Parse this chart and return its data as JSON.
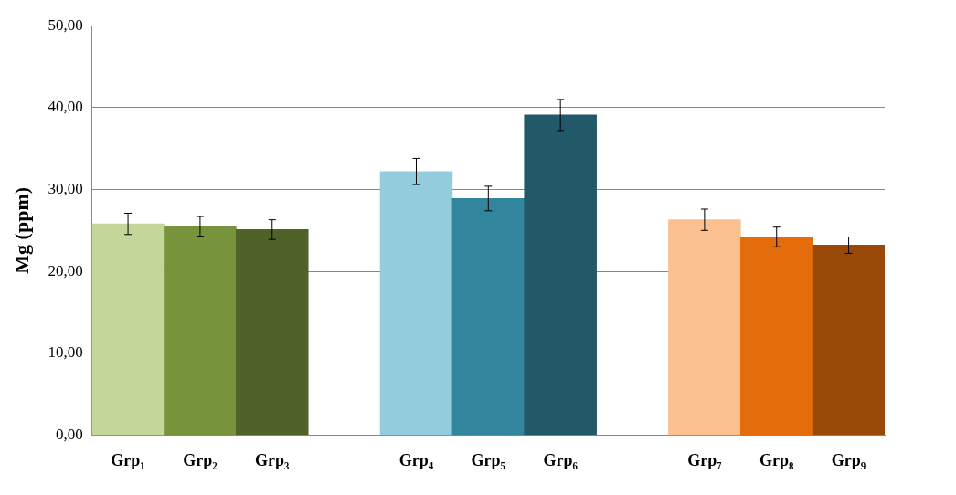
{
  "chart_data": {
    "type": "bar",
    "ylabel": "Mg (ppm)",
    "categories": [
      "Grp₁",
      "Grp₂",
      "Grp₃",
      null,
      "Grp₄",
      "Grp₅",
      "Grp₆",
      null,
      "Grp₇",
      "Grp₈",
      "Grp₉"
    ],
    "values": [
      25.8,
      25.5,
      25.1,
      null,
      32.2,
      28.9,
      39.1,
      null,
      26.3,
      24.2,
      23.2
    ],
    "errors": [
      1.3,
      1.2,
      1.2,
      null,
      1.6,
      1.5,
      1.9,
      null,
      1.3,
      1.2,
      1.0
    ],
    "colors": [
      "#c4d79b",
      "#77933c",
      "#4f6228",
      null,
      "#93cddd",
      "#31859c",
      "#215968",
      null,
      "#fac090",
      "#e46c0a",
      "#984807"
    ],
    "ylim": [
      0,
      50
    ],
    "yticks": [
      {
        "value": 0,
        "label": "0,00"
      },
      {
        "value": 10,
        "label": "10,00"
      },
      {
        "value": 20,
        "label": "20,00"
      },
      {
        "value": 30,
        "label": "30,00"
      },
      {
        "value": 40,
        "label": "40,00"
      },
      {
        "value": 50,
        "label": "50,00"
      }
    ],
    "grid": "y",
    "legend": false
  }
}
